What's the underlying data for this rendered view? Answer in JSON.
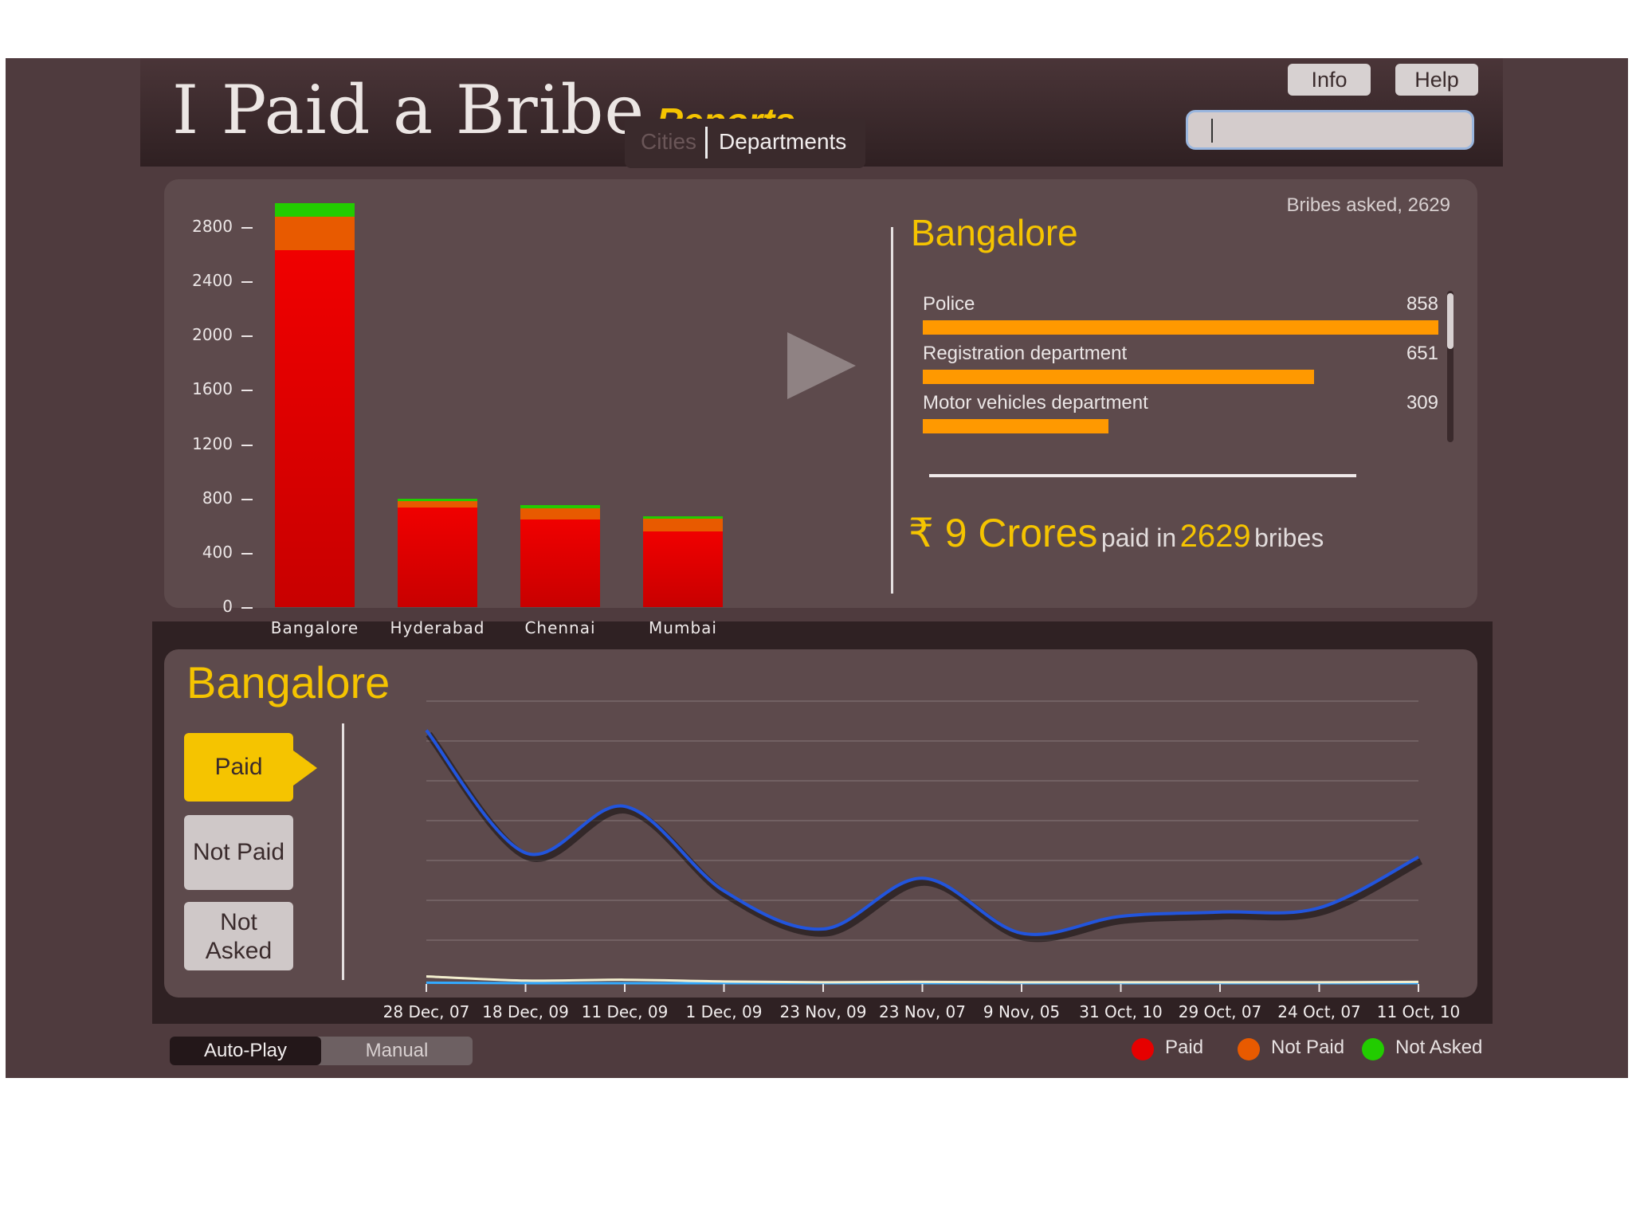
{
  "header": {
    "title": "I Paid a Bribe",
    "subtitle": "Reports",
    "info_label": "Info",
    "help_label": "Help",
    "search_value": ""
  },
  "tabs": {
    "cities": "Cities",
    "departments": "Departments"
  },
  "city_panel": {
    "city": "Bangalore",
    "bribes_asked_text": "Bribes asked, 2629",
    "departments": [
      {
        "name": "Police",
        "value": "858",
        "fraction": 1.0
      },
      {
        "name": "Registration department",
        "value": "651",
        "fraction": 0.759
      },
      {
        "name": "Motor vehicles department",
        "value": "309",
        "fraction": 0.36
      }
    ],
    "summary": {
      "amount": "₹ 9 Crores",
      "paid_in": "paid in",
      "count": "2629",
      "bribes": "bribes"
    }
  },
  "chart_data": [
    {
      "type": "bar",
      "stacked": true,
      "categories": [
        "Bangalore",
        "Hyderabad",
        "Chennai",
        "Mumbai"
      ],
      "ylim": [
        0,
        3000
      ],
      "yticks": [
        "0",
        "400",
        "800",
        "1200",
        "1600",
        "2000",
        "2400",
        "2800"
      ],
      "series": [
        {
          "name": "Paid",
          "color": "#e60000",
          "values": [
            2629,
            735,
            645,
            555
          ]
        },
        {
          "name": "Not Paid",
          "color": "#e85a00",
          "values": [
            250,
            45,
            80,
            95
          ]
        },
        {
          "name": "Not Asked",
          "color": "#22cc00",
          "values": [
            100,
            20,
            25,
            20
          ]
        }
      ]
    },
    {
      "type": "line",
      "x": [
        "28 Dec, 07",
        "18 Dec, 09",
        "11 Dec, 09",
        "1 Dec, 09",
        "23 Nov, 09",
        "23 Nov, 07",
        "9 Nov, 05",
        "31 Oct, 10",
        "29 Oct, 07",
        "24 Oct, 07",
        "11 Oct, 10"
      ],
      "series": [
        {
          "name": "Paid",
          "color": "#2255dd",
          "values": [
            6.0,
            3.1,
            4.2,
            2.2,
            1.3,
            2.5,
            1.2,
            1.6,
            1.7,
            1.8,
            3.0
          ]
        },
        {
          "name": "Not Paid",
          "color": "#f3efcf",
          "values": [
            0.18,
            0.08,
            0.1,
            0.06,
            0.04,
            0.05,
            0.04,
            0.04,
            0.04,
            0.04,
            0.05
          ]
        },
        {
          "name": "Not Asked",
          "color": "#33aaff",
          "values": [
            0.03,
            0.02,
            0.02,
            0.02,
            0.02,
            0.02,
            0.02,
            0.02,
            0.02,
            0.02,
            0.02
          ]
        }
      ],
      "grid": true
    }
  ],
  "bottom_panel": {
    "city": "Bangalore",
    "buttons": [
      "Paid",
      "Not Paid",
      "Not Asked"
    ],
    "active_button": "Paid"
  },
  "footer": {
    "autoplay_label": "Auto-Play",
    "manual_label": "Manual",
    "legend": [
      {
        "label": "Paid",
        "color": "#e60000"
      },
      {
        "label": "Not Paid",
        "color": "#e85a00"
      },
      {
        "label": "Not Asked",
        "color": "#22cc00"
      }
    ]
  }
}
